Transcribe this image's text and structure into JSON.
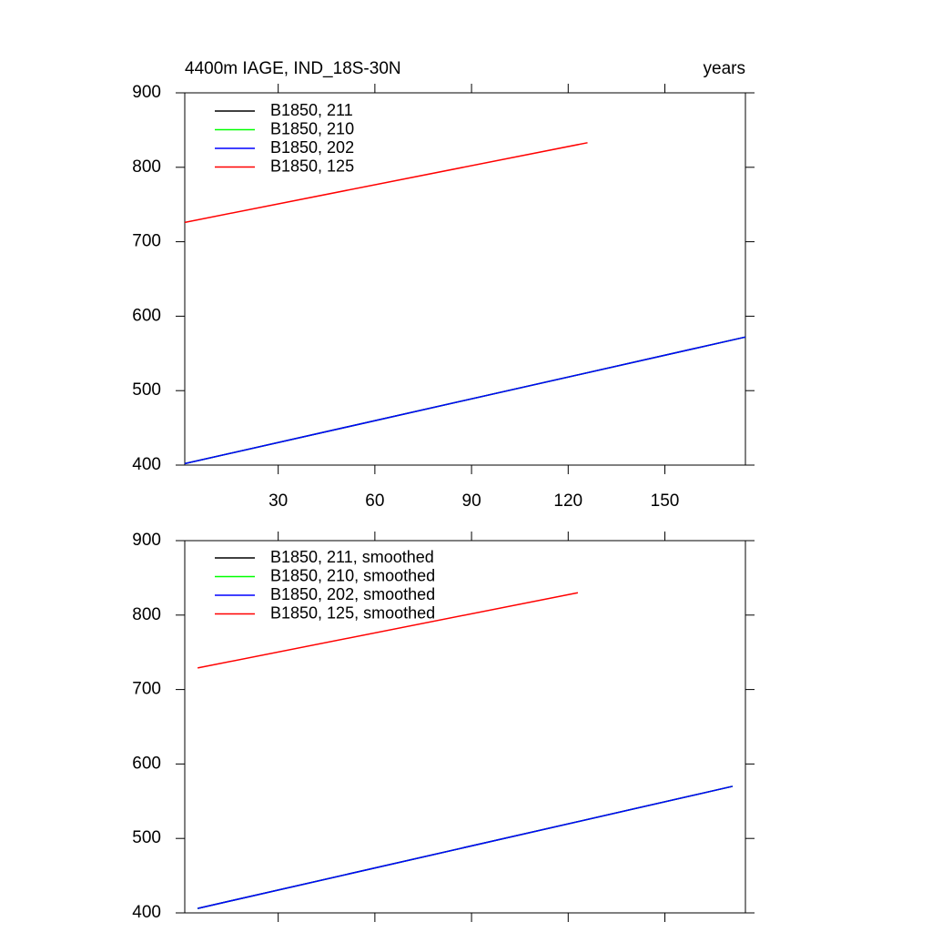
{
  "chart_data": [
    {
      "type": "line",
      "title": "4400m IAGE, IND_18S-30N",
      "right_title": "years",
      "xlim": [
        1,
        175
      ],
      "ylim": [
        400,
        900
      ],
      "xticks": [
        30,
        60,
        90,
        120,
        150
      ],
      "yticks": [
        400,
        500,
        600,
        700,
        800,
        900
      ],
      "show_xtick_labels": true,
      "legend": "upper left",
      "series": [
        {
          "name": "B1850, 211",
          "color": "#000000",
          "x": [
            1,
            175
          ],
          "values": [
            402,
            572
          ]
        },
        {
          "name": "B1850, 210",
          "color": "#00ff00",
          "x": [
            1,
            175
          ],
          "values": [
            402,
            572
          ]
        },
        {
          "name": "B1850, 202",
          "color": "#0000ff",
          "x": [
            1,
            175
          ],
          "values": [
            402,
            572
          ]
        },
        {
          "name": "B1850, 125",
          "color": "#ff0000",
          "x": [
            1,
            126
          ],
          "values": [
            726,
            833
          ]
        }
      ]
    },
    {
      "type": "line",
      "xlim": [
        1,
        175
      ],
      "ylim": [
        400,
        900
      ],
      "xticks": [
        30,
        60,
        90,
        120,
        150
      ],
      "yticks": [
        400,
        500,
        600,
        700,
        800,
        900
      ],
      "show_xtick_labels": false,
      "legend": "upper left",
      "series": [
        {
          "name": "B1850, 211, smoothed",
          "color": "#000000",
          "x": [
            5,
            171
          ],
          "values": [
            406,
            570
          ]
        },
        {
          "name": "B1850, 210, smoothed",
          "color": "#00ff00",
          "x": [
            5,
            171
          ],
          "values": [
            406,
            570
          ]
        },
        {
          "name": "B1850, 202, smoothed",
          "color": "#0000ff",
          "x": [
            5,
            171
          ],
          "values": [
            406,
            570
          ]
        },
        {
          "name": "B1850, 125, smoothed",
          "color": "#ff0000",
          "x": [
            5,
            123
          ],
          "values": [
            729,
            830
          ]
        }
      ]
    }
  ]
}
